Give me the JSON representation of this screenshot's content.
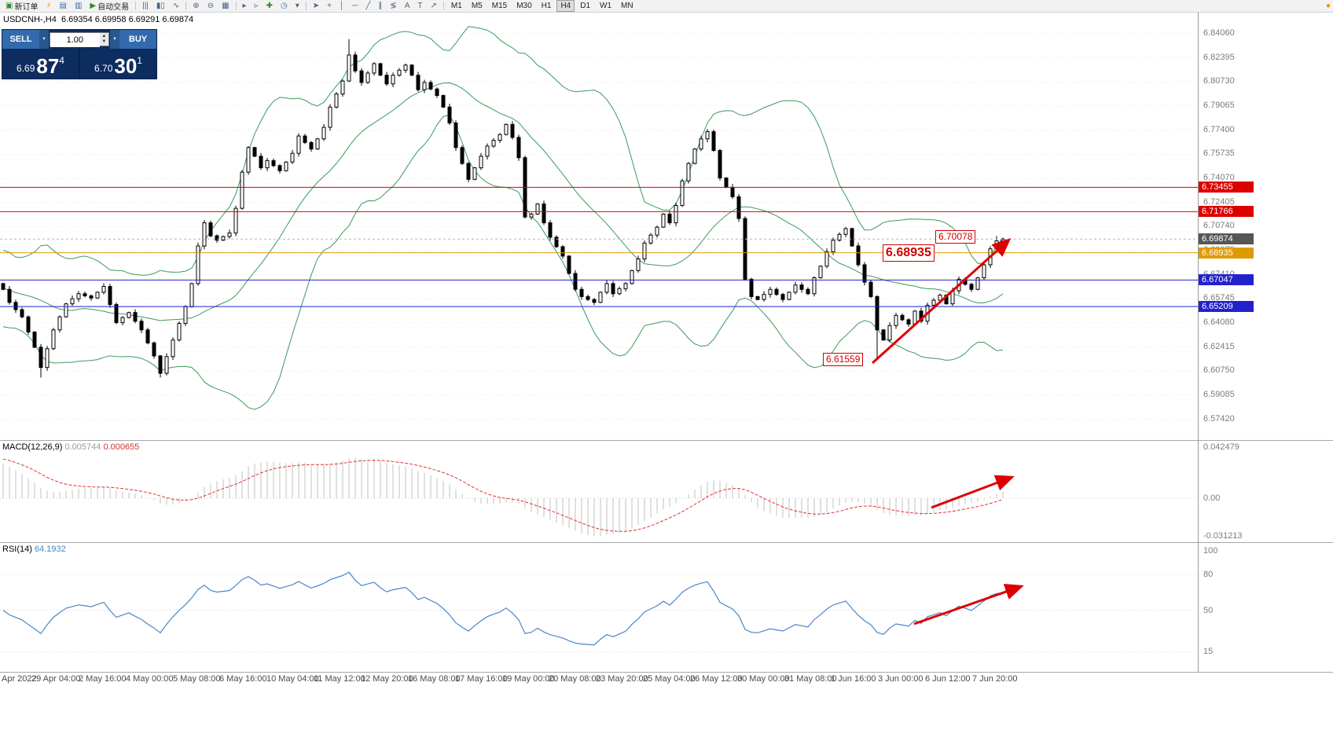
{
  "colors": {
    "red_line": "#dd0000",
    "blue_line": "#2222cc",
    "orange_line": "#df9a00",
    "band_green": "#3a9a5c",
    "rsi_blue": "#4a86c8",
    "macd_hist": "#c2c2c2",
    "macd_signal": "#e03232",
    "panel_navy": "#0d2c5f",
    "button_blue": "#336aae",
    "arrow_red": "#dd0000",
    "current_tag_bg": "#565656"
  },
  "toolbar": {
    "buttons_left": [
      {
        "name": "new-order-button",
        "glyph": "▣",
        "color": "#2e8b2e",
        "label": "新订单"
      },
      {
        "name": "alert-icon-button",
        "glyph": "⚡",
        "color": "#e09a00",
        "label": ""
      },
      {
        "name": "market-watch-button",
        "glyph": "▤",
        "color": "#3a6ea5",
        "label": ""
      },
      {
        "name": "navigator-button",
        "glyph": "▥",
        "color": "#3a6ea5",
        "label": ""
      },
      {
        "name": "autotrading-button",
        "glyph": "▶",
        "color": "#2e8b2e",
        "label": "自动交易"
      }
    ],
    "chart_mode_buttons": [
      {
        "name": "bars-chart-button",
        "glyph": "|||"
      },
      {
        "name": "candlestick-chart-button",
        "glyph": "▮▯"
      },
      {
        "name": "line-chart-button",
        "glyph": "∿"
      }
    ],
    "zoom_buttons": [
      {
        "name": "zoom-in-button",
        "glyph": "⊕"
      },
      {
        "name": "zoom-out-button",
        "glyph": "⊖"
      },
      {
        "name": "tile-windows-button",
        "glyph": "▦"
      }
    ],
    "nav_buttons": [
      {
        "name": "auto-scroll-button",
        "glyph": "▸"
      },
      {
        "name": "chart-shift-button",
        "glyph": "▹"
      },
      {
        "name": "indicators-button",
        "glyph": "✚",
        "color": "#2e8b2e"
      },
      {
        "name": "period-button",
        "glyph": "◷",
        "color": "#3a6ea5"
      },
      {
        "name": "templates-button",
        "glyph": "▾"
      }
    ],
    "draw_buttons": [
      {
        "name": "cursor-button",
        "glyph": "➤"
      },
      {
        "name": "crosshair-button",
        "glyph": "+"
      },
      {
        "name": "vertical-line-button",
        "glyph": "│"
      },
      {
        "name": "horizontal-line-button",
        "glyph": "─"
      },
      {
        "name": "trendline-button",
        "glyph": "╱"
      },
      {
        "name": "channel-button",
        "glyph": "∥"
      },
      {
        "name": "fibonacci-button",
        "glyph": "≶"
      },
      {
        "name": "text-button",
        "glyph": "A"
      },
      {
        "name": "label-button",
        "glyph": "T"
      },
      {
        "name": "arrows-button",
        "glyph": "↗"
      }
    ],
    "timeframes": [
      "M1",
      "M5",
      "M15",
      "M30",
      "H1",
      "H4",
      "D1",
      "W1",
      "MN"
    ],
    "active_timeframe": "H4",
    "status_icon": {
      "name": "connection-status-icon",
      "glyph": "●",
      "color": "#ff8800"
    }
  },
  "symbol_header": "USDCNH-,H4  6.69354 6.69958 6.69291 6.69874",
  "one_click": {
    "sell_label": "SELL",
    "buy_label": "BUY",
    "volume": "1.00",
    "dropdown_glyph": "▼",
    "spin_up": "▲",
    "spin_down": "▼",
    "sell_price": {
      "prefix": "6.69",
      "big": "87",
      "sup": "4"
    },
    "buy_price": {
      "prefix": "6.70",
      "big": "30",
      "sup": "1"
    }
  },
  "price_axis": {
    "labels": [
      "6.84060",
      "6.82395",
      "6.80730",
      "6.79065",
      "6.77400",
      "6.75735",
      "6.74070",
      "6.72405",
      "6.70740",
      "6.69075",
      "6.67410",
      "6.65745",
      "6.64080",
      "6.62415",
      "6.60750",
      "6.59085",
      "6.57420"
    ],
    "tags": [
      {
        "text": "6.73455",
        "bg": "#dd0000"
      },
      {
        "text": "6.71766",
        "bg": "#dd0000"
      },
      {
        "text": "6.69874",
        "bg": "#565656"
      },
      {
        "text": "6.68935",
        "bg": "#df9a00"
      },
      {
        "text": "6.67047",
        "bg": "#2222cc"
      },
      {
        "text": "6.65209",
        "bg": "#2222cc"
      }
    ]
  },
  "hlines": [
    {
      "price": 6.73455,
      "color": "#dd0000",
      "name": "resistance-line-1"
    },
    {
      "price": 6.71766,
      "color": "#dd0000",
      "name": "resistance-line-2"
    },
    {
      "price": 6.68935,
      "color": "#df9a00",
      "name": "pivot-line"
    },
    {
      "price": 6.67047,
      "color": "#2222cc",
      "name": "support-line-1"
    },
    {
      "price": 6.65209,
      "color": "#2222cc",
      "name": "support-line-2"
    }
  ],
  "annotations": [
    {
      "name": "price-label-high",
      "text": "6.70078",
      "price": 6.70078,
      "size": "small"
    },
    {
      "name": "price-label-mid",
      "text": "6.68935",
      "price": 6.68935,
      "size": "large"
    },
    {
      "name": "price-label-low",
      "text": "6.61559",
      "price": 6.61559,
      "size": "small"
    }
  ],
  "macd_pane": {
    "title": "MACD(12,26,9)",
    "value_main": "0.005744",
    "value_signal": "0.000655",
    "axis_max": "0.042479",
    "axis_zero": "0.00",
    "axis_min": "-0.031213"
  },
  "rsi_pane": {
    "title": "RSI(14)",
    "value": "64.1932",
    "axis_labels": [
      "100",
      "80",
      "50",
      "15"
    ],
    "levels": [
      80,
      50,
      15
    ]
  },
  "time_axis": [
    "Apr 2022",
    "29 Apr 04:00",
    "2 May 16:00",
    "4 May 00:00",
    "5 May 08:00",
    "6 May 16:00",
    "10 May 04:00",
    "11 May 12:00",
    "12 May 20:00",
    "16 May 08:00",
    "17 May 16:00",
    "19 May 00:00",
    "20 May 08:00",
    "23 May 20:00",
    "25 May 04:00",
    "26 May 12:00",
    "30 May 00:00",
    "31 May 08:00",
    "1 Jun 16:00",
    "3 Jun 00:00",
    "6 Jun 12:00",
    "7 Jun 20:00"
  ],
  "chart_data": {
    "type": "candlestick",
    "symbol": "USDCNH-",
    "timeframe": "H4",
    "ohlc_current": {
      "open": 6.69354,
      "high": 6.69958,
      "low": 6.69291,
      "close": 6.69874
    },
    "bid": 6.69874,
    "n_candles": 160,
    "price_axis_range": [
      6.5604,
      6.8553
    ],
    "close_anchors": [
      [
        0,
        6.664
      ],
      [
        1,
        6.655
      ],
      [
        3,
        6.645
      ],
      [
        5,
        6.624
      ],
      [
        6,
        6.61
      ],
      [
        8,
        6.636
      ],
      [
        10,
        6.654
      ],
      [
        12,
        6.661
      ],
      [
        14,
        6.658
      ],
      [
        16,
        6.666
      ],
      [
        18,
        6.641
      ],
      [
        20,
        6.648
      ],
      [
        22,
        6.636
      ],
      [
        24,
        6.618
      ],
      [
        25,
        6.606
      ],
      [
        27,
        6.629
      ],
      [
        29,
        6.652
      ],
      [
        30,
        6.668
      ],
      [
        31,
        6.694
      ],
      [
        32,
        6.71
      ],
      [
        33,
        6.701
      ],
      [
        34,
        6.698
      ],
      [
        36,
        6.703
      ],
      [
        37,
        6.72
      ],
      [
        38,
        6.745
      ],
      [
        39,
        6.762
      ],
      [
        40,
        6.756
      ],
      [
        41,
        6.748
      ],
      [
        42,
        6.753
      ],
      [
        44,
        6.746
      ],
      [
        45,
        6.752
      ],
      [
        46,
        6.758
      ],
      [
        47,
        6.77
      ],
      [
        49,
        6.761
      ],
      [
        50,
        6.768
      ],
      [
        51,
        6.776
      ],
      [
        52,
        6.79
      ],
      [
        54,
        6.808
      ],
      [
        55,
        6.826
      ],
      [
        56,
        6.815
      ],
      [
        57,
        6.807
      ],
      [
        59,
        6.82
      ],
      [
        60,
        6.812
      ],
      [
        61,
        6.806
      ],
      [
        62,
        6.812
      ],
      [
        64,
        6.819
      ],
      [
        65,
        6.812
      ],
      [
        66,
        6.802
      ],
      [
        67,
        6.807
      ],
      [
        69,
        6.798
      ],
      [
        70,
        6.79
      ],
      [
        71,
        6.779
      ],
      [
        72,
        6.762
      ],
      [
        73,
        6.751
      ],
      [
        74,
        6.74
      ],
      [
        75,
        6.748
      ],
      [
        76,
        6.756
      ],
      [
        77,
        6.763
      ],
      [
        79,
        6.771
      ],
      [
        80,
        6.778
      ],
      [
        81,
        6.769
      ],
      [
        82,
        6.755
      ],
      [
        83,
        6.714
      ],
      [
        84,
        6.716
      ],
      [
        85,
        6.723
      ],
      [
        86,
        6.71
      ],
      [
        87,
        6.7
      ],
      [
        89,
        6.687
      ],
      [
        90,
        6.675
      ],
      [
        91,
        6.664
      ],
      [
        92,
        6.659
      ],
      [
        94,
        6.655
      ],
      [
        95,
        6.662
      ],
      [
        96,
        6.668
      ],
      [
        97,
        6.661
      ],
      [
        99,
        6.668
      ],
      [
        100,
        6.677
      ],
      [
        101,
        6.685
      ],
      [
        102,
        6.696
      ],
      [
        104,
        6.707
      ],
      [
        105,
        6.716
      ],
      [
        106,
        6.71
      ],
      [
        107,
        6.722
      ],
      [
        108,
        6.739
      ],
      [
        109,
        6.751
      ],
      [
        110,
        6.761
      ],
      [
        111,
        6.768
      ],
      [
        112,
        6.773
      ],
      [
        113,
        6.76
      ],
      [
        114,
        6.741
      ],
      [
        116,
        6.728
      ],
      [
        117,
        6.713
      ],
      [
        118,
        6.671
      ],
      [
        119,
        6.659
      ],
      [
        120,
        6.657
      ],
      [
        122,
        6.664
      ],
      [
        124,
        6.657
      ],
      [
        126,
        6.667
      ],
      [
        128,
        6.661
      ],
      [
        129,
        6.672
      ],
      [
        130,
        6.68
      ],
      [
        131,
        6.69
      ],
      [
        132,
        6.698
      ],
      [
        134,
        6.706
      ],
      [
        135,
        6.694
      ],
      [
        136,
        6.681
      ],
      [
        137,
        6.669
      ],
      [
        138,
        6.659
      ],
      [
        139,
        6.636
      ],
      [
        140,
        6.629
      ],
      [
        141,
        6.639
      ],
      [
        142,
        6.646
      ],
      [
        144,
        6.64
      ],
      [
        145,
        6.649
      ],
      [
        146,
        6.642
      ],
      [
        147,
        6.653
      ],
      [
        149,
        6.66
      ],
      [
        150,
        6.654
      ],
      [
        151,
        6.663
      ],
      [
        152,
        6.671
      ],
      [
        154,
        6.664
      ],
      [
        155,
        6.672
      ],
      [
        156,
        6.681
      ],
      [
        157,
        6.692
      ],
      [
        158,
        6.6975
      ],
      [
        159,
        6.6987
      ]
    ],
    "extremes": {
      "highs": {
        "55": 6.837,
        "158": 6.70078,
        "159": 6.69958
      },
      "lows": {
        "6": 6.603,
        "25": 6.603,
        "139": 6.6156,
        "159": 6.69291
      }
    },
    "indicators": [
      {
        "name": "Bollinger Bands",
        "period": 20,
        "deviation": 2
      },
      {
        "name": "MACD",
        "params": [
          12,
          26,
          9
        ],
        "last": [
          0.005744,
          0.000655
        ]
      },
      {
        "name": "RSI",
        "period": 14,
        "last": 64.1932
      }
    ]
  }
}
